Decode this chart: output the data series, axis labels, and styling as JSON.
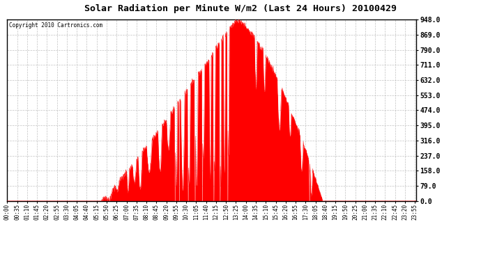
{
  "title": "Solar Radiation per Minute W/m2 (Last 24 Hours) 20100429",
  "copyright": "Copyright 2010 Cartronics.com",
  "fill_color": "#FF0000",
  "line_color": "#FF0000",
  "background_color": "#FFFFFF",
  "grid_color": "#BBBBBB",
  "dashed_line_color": "#FF0000",
  "ylim": [
    0.0,
    948.0
  ],
  "yticks": [
    0.0,
    79.0,
    158.0,
    237.0,
    316.0,
    395.0,
    474.0,
    553.0,
    632.0,
    711.0,
    790.0,
    869.0,
    948.0
  ],
  "num_points": 1440,
  "sunrise_index": 330,
  "sunset_index": 1110,
  "peak_index": 805,
  "peak_value": 948
}
